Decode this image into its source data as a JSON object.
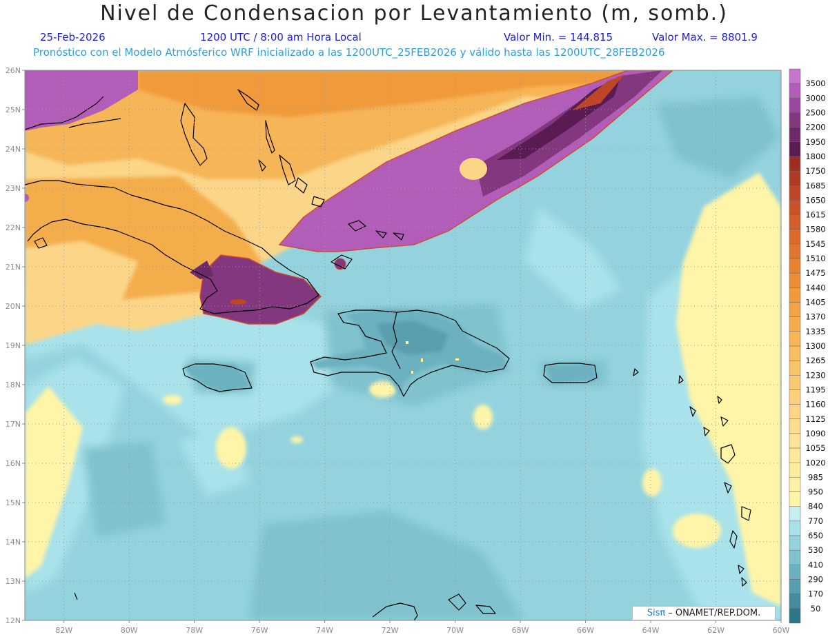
{
  "header": {
    "title": "Nivel de Condensacion por Levantamiento (m, somb.)",
    "date": "25-Feb-2026",
    "time": "1200 UTC / 8:00 am Hora Local",
    "min_label": "Valor Min. = 144.815",
    "max_label": "Valor Max. = 8801.9",
    "model_info": "Pronóstico con el Modelo Atmósferico WRF inicializado a las 1200UTC_25FEB2026 y válido hasta las  1200UTC_28FEB2026"
  },
  "map": {
    "lat_labels": [
      "26N",
      "25N",
      "24N",
      "23N",
      "22N",
      "21N",
      "20N",
      "19N",
      "18N",
      "17N",
      "16N",
      "15N",
      "14N",
      "13N",
      "12N"
    ],
    "lon_labels": [
      "82W",
      "80W",
      "78W",
      "76W",
      "74W",
      "72W",
      "70W",
      "68W",
      "66W",
      "64W",
      "62W",
      "60W"
    ],
    "lat_range": [
      12,
      26
    ],
    "lon_range": [
      -83.2,
      -60
    ]
  },
  "colorbar": {
    "levels": [
      {
        "label": "3500",
        "color": "#c476cc"
      },
      {
        "label": "3000",
        "color": "#b25eb8"
      },
      {
        "label": "2500",
        "color": "#9a47a0"
      },
      {
        "label": "2200",
        "color": "#83377f"
      },
      {
        "label": "1950",
        "color": "#6d2a68"
      },
      {
        "label": "1800",
        "color": "#5a1a52"
      },
      {
        "label": "1750",
        "color": "#9c2f22"
      },
      {
        "label": "1685",
        "color": "#ae3a24"
      },
      {
        "label": "1650",
        "color": "#bd4626"
      },
      {
        "label": "1615",
        "color": "#c95228"
      },
      {
        "label": "1580",
        "color": "#d35e2a"
      },
      {
        "label": "1545",
        "color": "#db6a2c"
      },
      {
        "label": "1510",
        "color": "#e2762e"
      },
      {
        "label": "1475",
        "color": "#e78230"
      },
      {
        "label": "1440",
        "color": "#ec8e34"
      },
      {
        "label": "1405",
        "color": "#f09a3a"
      },
      {
        "label": "1370",
        "color": "#f2a442"
      },
      {
        "label": "1335",
        "color": "#f4ad4c"
      },
      {
        "label": "1300",
        "color": "#f6b556"
      },
      {
        "label": "1265",
        "color": "#f7bd60"
      },
      {
        "label": "1230",
        "color": "#f8c46a"
      },
      {
        "label": "1195",
        "color": "#f9ca74"
      },
      {
        "label": "1160",
        "color": "#fad07e"
      },
      {
        "label": "1125",
        "color": "#fbd688"
      },
      {
        "label": "1090",
        "color": "#fbdc8e"
      },
      {
        "label": "1055",
        "color": "#fce294"
      },
      {
        "label": "1020",
        "color": "#fde798"
      },
      {
        "label": "985",
        "color": "#fdec9c"
      },
      {
        "label": "950",
        "color": "#fef0a2"
      },
      {
        "label": "840",
        "color": "#fef5a8"
      },
      {
        "label": "770",
        "color": "#c4eef2"
      },
      {
        "label": "650",
        "color": "#a9e2ea"
      },
      {
        "label": "530",
        "color": "#94d3de"
      },
      {
        "label": "410",
        "color": "#80c3cf"
      },
      {
        "label": "290",
        "color": "#6cb1bf"
      },
      {
        "label": "170",
        "color": "#589eae"
      },
      {
        "label": "50",
        "color": "#448b9c"
      }
    ],
    "bottom_color": "#2f7687"
  },
  "credit": {
    "logo": "Sisπ",
    "text": "– ONAMET/REP.DOM."
  }
}
